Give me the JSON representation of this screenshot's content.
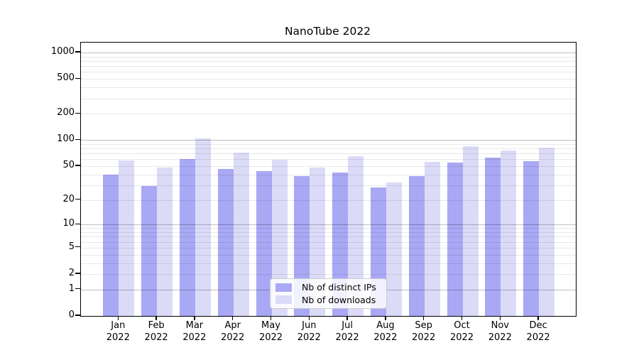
{
  "chart_data": {
    "type": "bar",
    "title": "NanoTube 2022",
    "year": "2022",
    "categories": [
      "Jan",
      "Feb",
      "Mar",
      "Apr",
      "May",
      "Jun",
      "Jul",
      "Aug",
      "Sep",
      "Oct",
      "Nov",
      "Dec"
    ],
    "series": [
      {
        "key": "distinct-ips",
        "name": "Nb of distinct IPs",
        "color": "#a8a8f4",
        "values": [
          40,
          29,
          60,
          46,
          44,
          38,
          42,
          28,
          38,
          55,
          63,
          57
        ]
      },
      {
        "key": "downloads",
        "name": "Nb of downloads",
        "color": "#dbdbf8",
        "values": [
          58,
          48,
          105,
          72,
          59,
          48,
          65,
          32,
          56,
          85,
          76,
          82
        ]
      }
    ],
    "yscale": "log1p",
    "ylim": [
      0,
      1300
    ],
    "yticks": [
      0,
      1,
      2,
      5,
      10,
      20,
      50,
      100,
      200,
      500,
      1000
    ],
    "ytick_labels": [
      "0",
      "1",
      "2",
      "5",
      "10",
      "20",
      "50",
      "100",
      "200",
      "500",
      "1000"
    ],
    "grid": {
      "major_values": [
        1,
        10,
        100,
        1000
      ],
      "minor_values": [
        2,
        3,
        4,
        5,
        6,
        7,
        8,
        9,
        20,
        30,
        40,
        50,
        60,
        70,
        80,
        90,
        200,
        300,
        400,
        500,
        600,
        700,
        800,
        900
      ]
    },
    "legend": {
      "position": "lower center"
    },
    "xlabel": "",
    "ylabel": ""
  }
}
